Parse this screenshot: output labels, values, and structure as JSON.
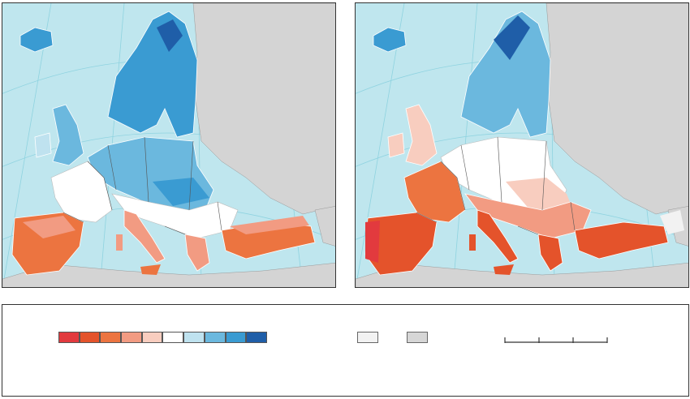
{
  "maps": [
    {
      "id": "left",
      "name": "map-left"
    },
    {
      "id": "right",
      "name": "map-right"
    }
  ],
  "colors": {
    "sea": "#bfe6ee",
    "non_eu_land": "#d4d4d4",
    "border": "#555555",
    "graticule": "#8fd3e0"
  },
  "legend": {
    "scale_colors": [
      "#e23a3e",
      "#e4532b",
      "#ec7440",
      "#f29b82",
      "#f8cdbf",
      "#ffffff",
      "#bfe2ef",
      "#6bb8de",
      "#3a9bd2",
      "#1f5ea8"
    ],
    "no_data_colors": [
      "#f2f2f2",
      "#d6d6d6"
    ],
    "scale_bar_ticks": 4
  }
}
